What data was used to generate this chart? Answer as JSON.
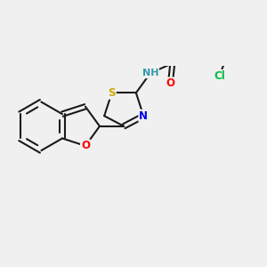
{
  "bg_color": "#f0f0f0",
  "bond_color": "#1a1a1a",
  "bond_width": 1.5,
  "dbo": 0.055,
  "atom_colors": {
    "O": "#ff0000",
    "N": "#0000ee",
    "S": "#ccaa00",
    "Cl": "#00bb44",
    "NH": "#3399aa",
    "C": "#1a1a1a"
  },
  "font_size": 8.5
}
